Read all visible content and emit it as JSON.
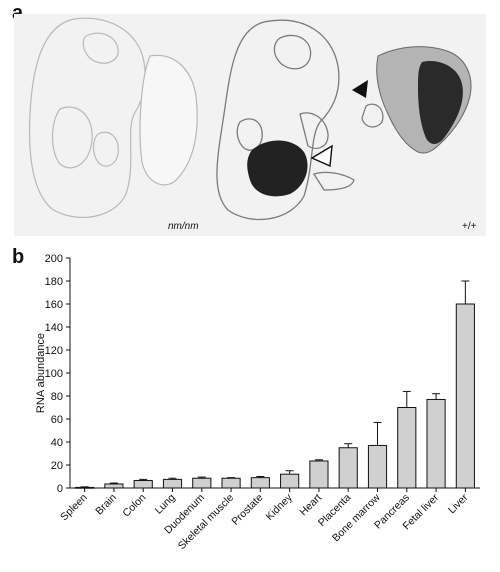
{
  "figure": {
    "panel_a": {
      "label": "a",
      "genotype_left": "nm/nm",
      "genotype_right": "+/+"
    },
    "panel_b": {
      "label": "b"
    }
  },
  "chart_data": {
    "type": "bar",
    "ylabel": "RNA abundance",
    "xlabel": "",
    "ylim": [
      0,
      200
    ],
    "yticks": [
      0,
      20,
      40,
      60,
      80,
      100,
      120,
      140,
      160,
      180,
      200
    ],
    "grid": false,
    "categories": [
      "Spleen",
      "Brain",
      "Colon",
      "Lung",
      "Duodenum",
      "Skeletal muscle",
      "Prostate",
      "Kidney",
      "Heart",
      "Placenta",
      "Bone marrow",
      "Pancreas",
      "Fetal liver",
      "Liver"
    ],
    "values": [
      0.5,
      3.5,
      6.5,
      7.5,
      8.5,
      8.5,
      9,
      12,
      23.5,
      35,
      37,
      70,
      77,
      160
    ],
    "errors": [
      0.5,
      0.8,
      1,
      1,
      1,
      0.5,
      1,
      3,
      1,
      3.5,
      20,
      14,
      5,
      20
    ],
    "bar_color": "#d0d0d0"
  }
}
